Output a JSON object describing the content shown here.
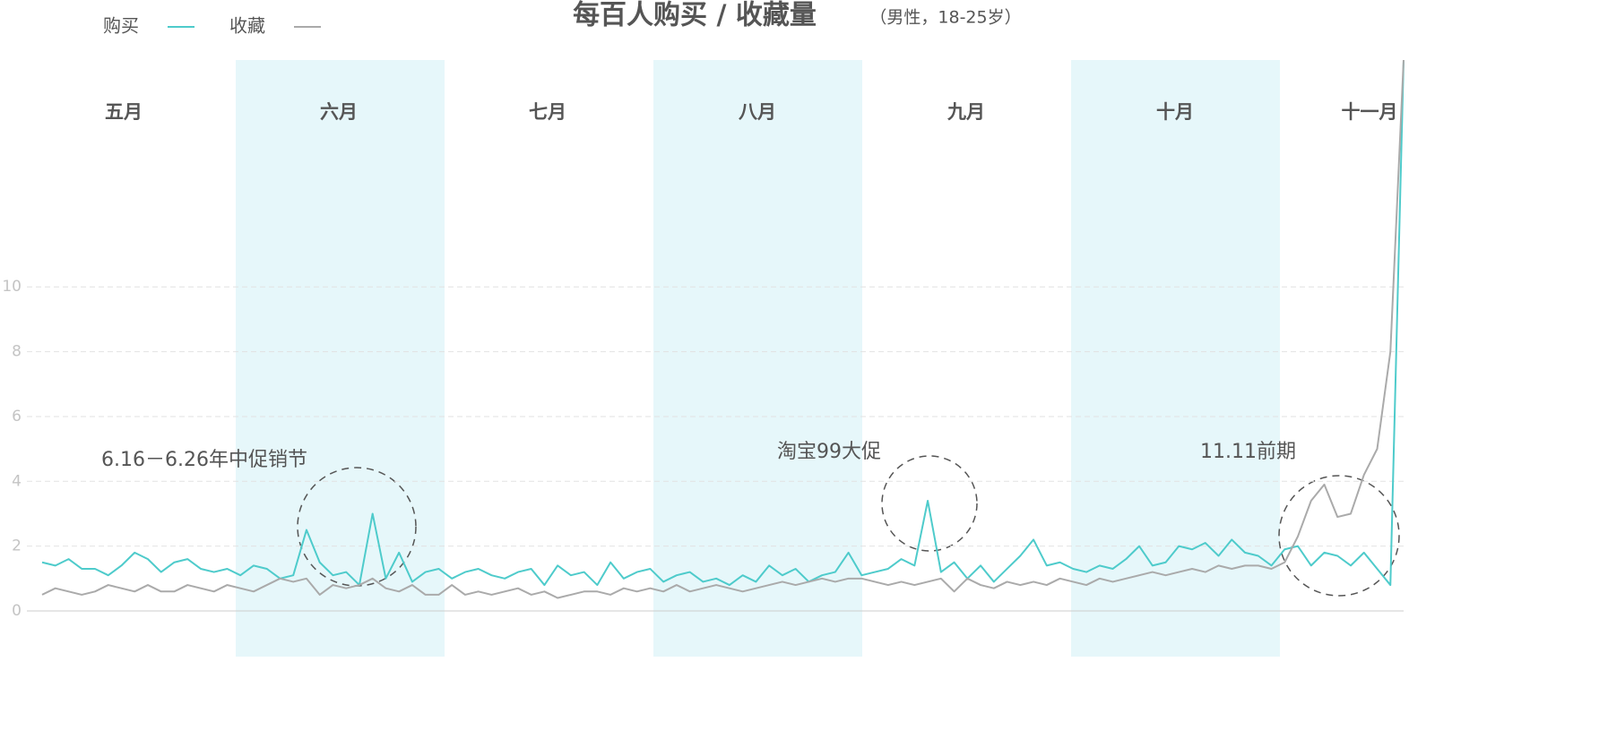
{
  "chart_data": {
    "type": "line",
    "title": "每百人购买 / 收藏量",
    "subtitle": "（男性，18-25岁）",
    "months": [
      "五月",
      "六月",
      "七月",
      "八月",
      "九月",
      "十月",
      "十一月"
    ],
    "annotations": [
      "6.16－6.26年中促销节",
      "淘宝99大促",
      "11.11前期"
    ],
    "ylim": [
      0,
      17
    ],
    "yticks": [
      0,
      2,
      4,
      6,
      8,
      10
    ],
    "grid": true,
    "series": [
      {
        "name": "购买",
        "color": "#4ecbcb",
        "values": [
          1.5,
          1.4,
          1.6,
          1.3,
          1.3,
          1.1,
          1.4,
          1.8,
          1.6,
          1.2,
          1.5,
          1.6,
          1.3,
          1.2,
          1.3,
          1.1,
          1.4,
          1.3,
          1.0,
          1.1,
          2.5,
          1.5,
          1.1,
          1.2,
          0.8,
          3.0,
          1.0,
          1.8,
          0.9,
          1.2,
          1.3,
          1.0,
          1.2,
          1.3,
          1.1,
          1.0,
          1.2,
          1.3,
          0.8,
          1.4,
          1.1,
          1.2,
          0.8,
          1.5,
          1.0,
          1.2,
          1.3,
          0.9,
          1.1,
          1.2,
          0.9,
          1.0,
          0.8,
          1.1,
          0.9,
          1.4,
          1.1,
          1.3,
          0.9,
          1.1,
          1.2,
          1.8,
          1.1,
          1.2,
          1.3,
          1.6,
          1.4,
          3.4,
          1.2,
          1.5,
          1.0,
          1.4,
          0.9,
          1.3,
          1.7,
          2.2,
          1.4,
          1.5,
          1.3,
          1.2,
          1.4,
          1.3,
          1.6,
          2.0,
          1.4,
          1.5,
          2.0,
          1.9,
          2.1,
          1.7,
          2.2,
          1.8,
          1.7,
          1.4,
          1.9,
          2.0,
          1.4,
          1.8,
          1.7,
          1.4,
          1.8,
          1.3,
          0.8,
          17
        ]
      },
      {
        "name": "收藏",
        "color": "#aaaaaa",
        "values": [
          0.5,
          0.7,
          0.6,
          0.5,
          0.6,
          0.8,
          0.7,
          0.6,
          0.8,
          0.6,
          0.6,
          0.8,
          0.7,
          0.6,
          0.8,
          0.7,
          0.6,
          0.8,
          1.0,
          0.9,
          1.0,
          0.5,
          0.8,
          0.7,
          0.8,
          1.0,
          0.7,
          0.6,
          0.8,
          0.5,
          0.5,
          0.8,
          0.5,
          0.6,
          0.5,
          0.6,
          0.7,
          0.5,
          0.6,
          0.4,
          0.5,
          0.6,
          0.6,
          0.5,
          0.7,
          0.6,
          0.7,
          0.6,
          0.8,
          0.6,
          0.7,
          0.8,
          0.7,
          0.6,
          0.7,
          0.8,
          0.9,
          0.8,
          0.9,
          1.0,
          0.9,
          1.0,
          1.0,
          0.9,
          0.8,
          0.9,
          0.8,
          0.9,
          1.0,
          0.6,
          1.0,
          0.8,
          0.7,
          0.9,
          0.8,
          0.9,
          0.8,
          1.0,
          0.9,
          0.8,
          1.0,
          0.9,
          1.0,
          1.1,
          1.2,
          1.1,
          1.2,
          1.3,
          1.2,
          1.4,
          1.3,
          1.4,
          1.4,
          1.3,
          1.5,
          2.3,
          3.4,
          3.9,
          2.9,
          3.0,
          4.2,
          5.0,
          8.0,
          17
        ]
      }
    ]
  }
}
